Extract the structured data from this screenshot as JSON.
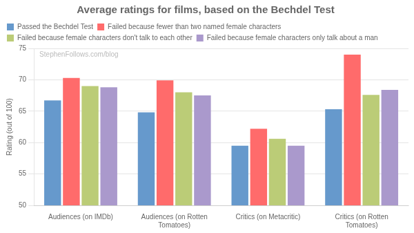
{
  "chart_data": {
    "type": "bar",
    "title": "Average ratings for films, based on the Bechdel Test",
    "y_label": "Rating (out of 100)",
    "categories": [
      "Audiences (on IMDb)",
      "Audiences (on Rotten\nTomatoes)",
      "Critics (on Metacritic)",
      "Critics (on Rotten\nTomatoes)"
    ],
    "series": [
      {
        "name": "Passed the Bechdel Test",
        "color": "#6699CC",
        "values": [
          66.7,
          64.8,
          59.5,
          65.3
        ]
      },
      {
        "name": "Failed because fewer than two named female characters",
        "color": "#FF6B6B",
        "values": [
          70.3,
          69.9,
          62.2,
          74.0
        ]
      },
      {
        "name": "Failed because female characters don't talk to each other",
        "color": "#BBCC77",
        "values": [
          69.0,
          68.0,
          60.6,
          67.6
        ]
      },
      {
        "name": "Failed because female characters only talk about a man",
        "color": "#AA99CC",
        "values": [
          68.8,
          67.5,
          59.5,
          68.4
        ]
      }
    ],
    "ylim": [
      50,
      75
    ],
    "yticks": [
      50,
      55,
      60,
      65,
      70,
      75
    ],
    "grid": true,
    "legend": "top",
    "annotations": [
      "StephenFollows.com/blog"
    ]
  }
}
